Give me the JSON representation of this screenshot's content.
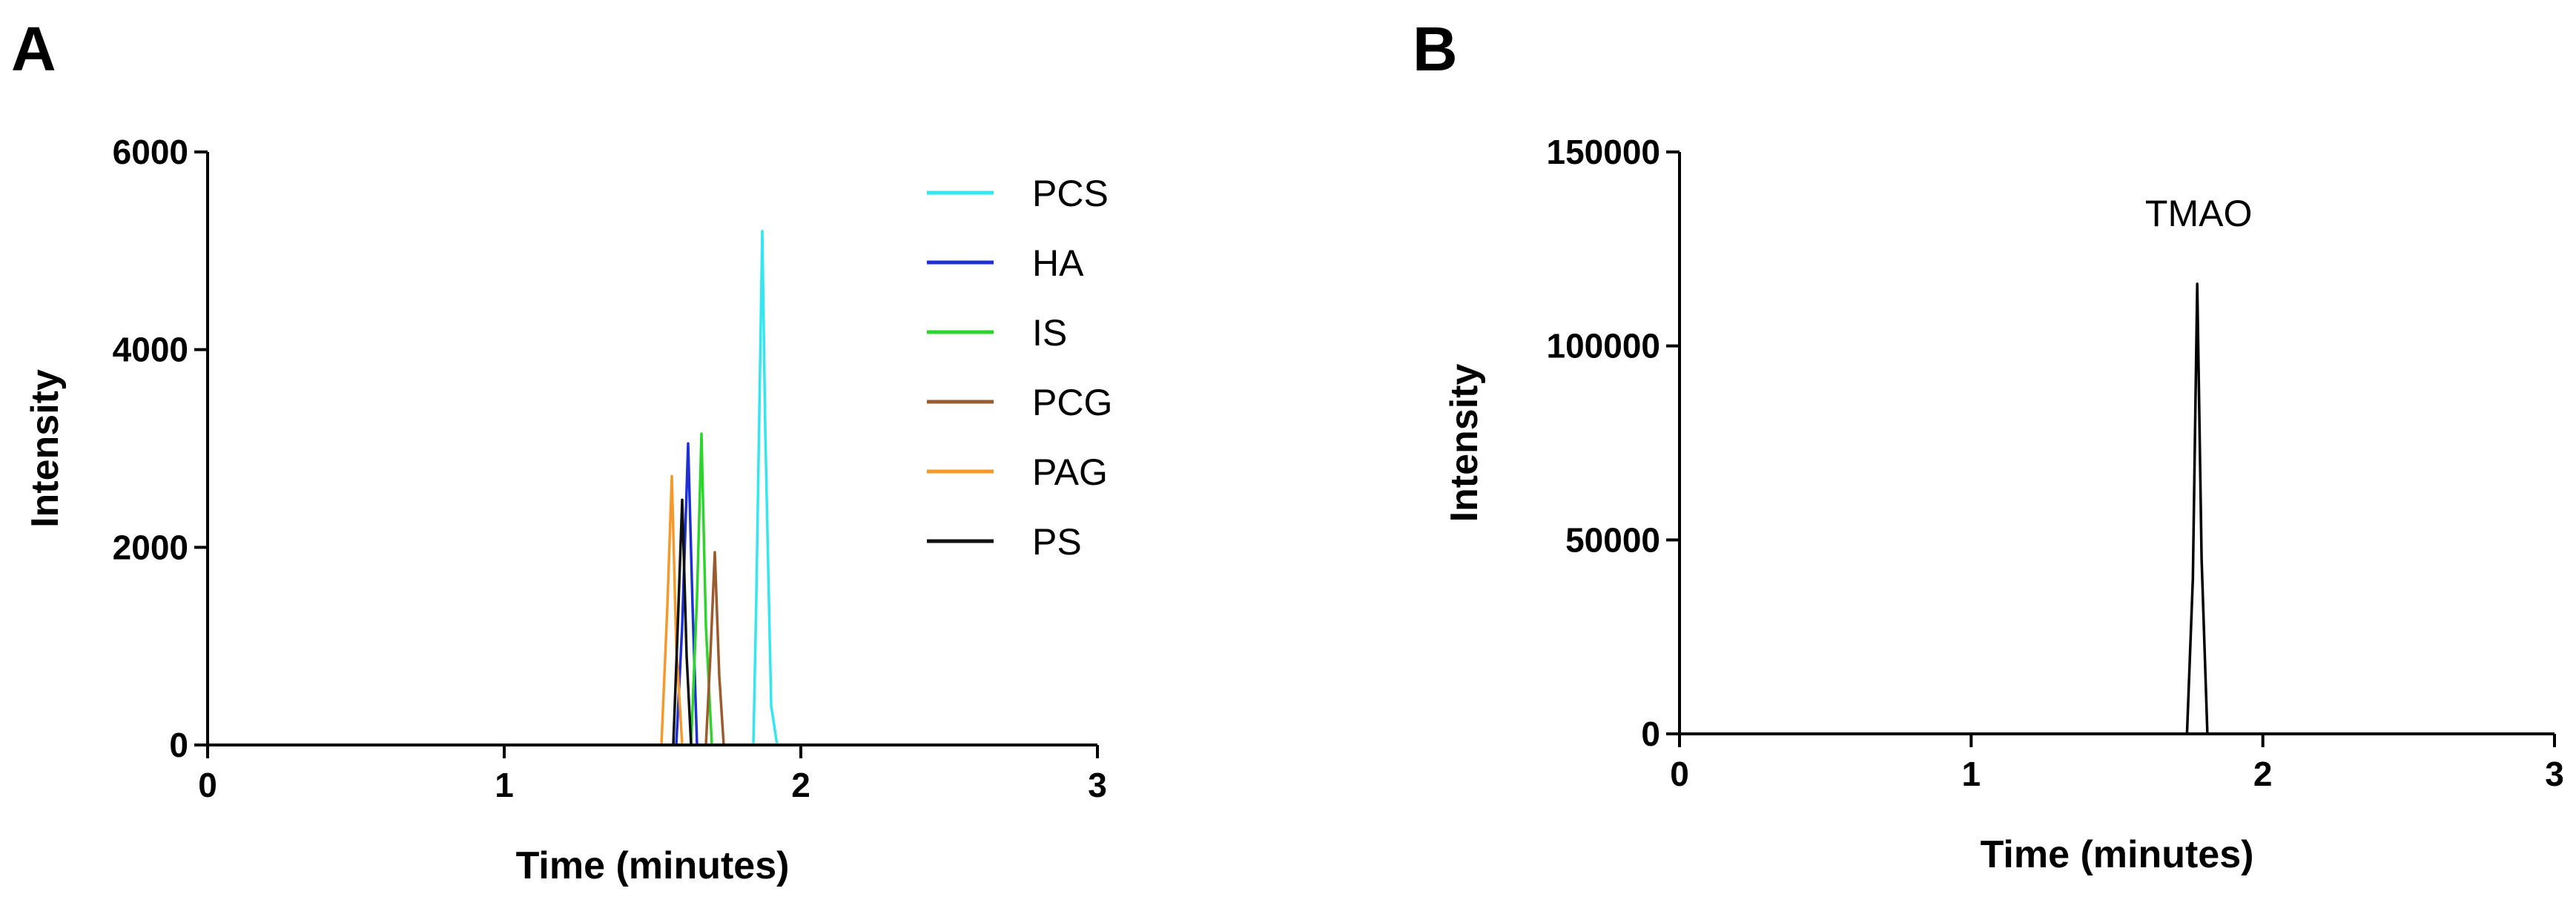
{
  "chart_data": [
    {
      "panel": "A",
      "type": "line",
      "xlabel": "Time (minutes)",
      "ylabel": "Intensity",
      "xlim": [
        0,
        3
      ],
      "ylim": [
        0,
        6000
      ],
      "xticks": [
        0,
        1,
        2,
        3
      ],
      "yticks": [
        0,
        2000,
        4000,
        6000
      ],
      "grid": false,
      "legend_position": "top-right",
      "series": [
        {
          "name": "PCS",
          "color": "#33e6f0",
          "x": [
            0,
            1.84,
            1.85,
            1.87,
            1.88,
            1.9,
            1.92,
            3
          ],
          "y": [
            0,
            0,
            1500,
            5200,
            3200,
            400,
            0,
            0
          ]
        },
        {
          "name": "HA",
          "color": "#1f2fd6",
          "x": [
            0,
            1.58,
            1.6,
            1.62,
            1.635,
            1.65,
            3
          ],
          "y": [
            0,
            0,
            1200,
            3050,
            1400,
            0,
            0
          ]
        },
        {
          "name": "IS",
          "color": "#2ed42e",
          "x": [
            0,
            1.63,
            1.65,
            1.665,
            1.68,
            1.7,
            3
          ],
          "y": [
            0,
            0,
            1500,
            3150,
            1200,
            0,
            0
          ]
        },
        {
          "name": "PCG",
          "color": "#9b5b2e",
          "x": [
            0,
            1.68,
            1.695,
            1.71,
            1.725,
            1.74,
            3
          ],
          "y": [
            0,
            0,
            900,
            1950,
            700,
            0,
            0
          ]
        },
        {
          "name": "PAG",
          "color": "#f59a2a",
          "x": [
            0,
            1.53,
            1.55,
            1.565,
            1.58,
            1.6,
            3
          ],
          "y": [
            0,
            0,
            1400,
            2720,
            1000,
            0,
            0
          ]
        },
        {
          "name": "PS",
          "color": "#111111",
          "x": [
            0,
            1.57,
            1.585,
            1.6,
            1.615,
            1.63,
            3
          ],
          "y": [
            0,
            0,
            1200,
            2480,
            900,
            0,
            0
          ]
        }
      ]
    },
    {
      "panel": "B",
      "type": "line",
      "xlabel": "Time (minutes)",
      "ylabel": "Intensity",
      "xlim": [
        0,
        3
      ],
      "ylim": [
        0,
        150000
      ],
      "xticks": [
        0,
        1,
        2,
        3
      ],
      "yticks": [
        0,
        50000,
        100000,
        150000
      ],
      "grid": false,
      "annotations": [
        "TMAO"
      ],
      "series": [
        {
          "color": "#000000",
          "x": [
            0,
            1.74,
            1.76,
            1.775,
            1.79,
            1.81,
            3
          ],
          "y": [
            0,
            0,
            40000,
            116000,
            45000,
            0,
            0
          ]
        }
      ]
    }
  ]
}
